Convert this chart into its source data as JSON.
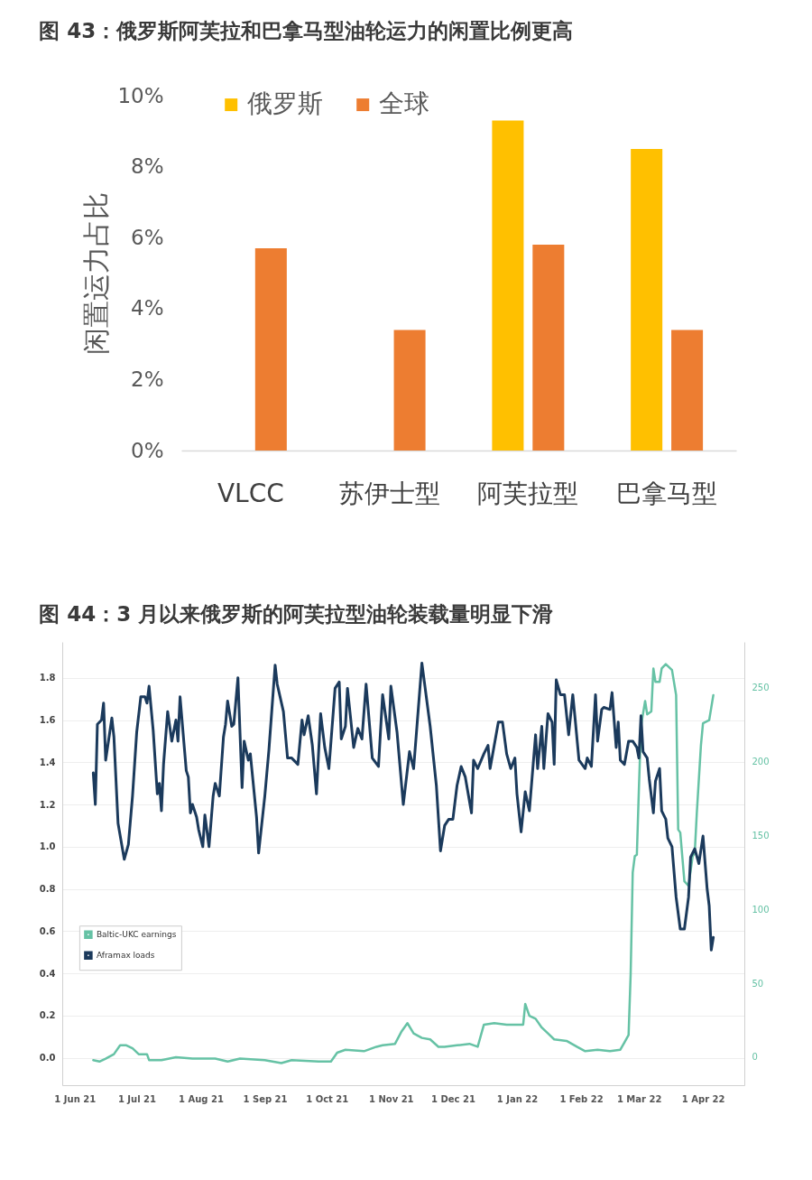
{
  "chart_data": [
    {
      "type": "bar",
      "title": "图 43：俄罗斯阿芙拉和巴拿马型油轮运力的闲置比例更高",
      "ylabel": "闲置运力占比",
      "categories": [
        "VLCC",
        "苏伊士型",
        "阿芙拉型",
        "巴拿马型"
      ],
      "series": [
        {
          "name": "俄罗斯",
          "color": "#ffc000",
          "values": [
            null,
            null,
            9.3,
            8.5
          ]
        },
        {
          "name": "全球",
          "color": "#ed7d31",
          "values": [
            5.7,
            3.4,
            5.8,
            3.4
          ]
        }
      ],
      "ylim": [
        0,
        10
      ],
      "yticks": [
        {
          "value": 0,
          "label": "0%"
        },
        {
          "value": 2,
          "label": "2%"
        },
        {
          "value": 4,
          "label": "4%"
        },
        {
          "value": 6,
          "label": "6%"
        },
        {
          "value": 8,
          "label": "8%"
        },
        {
          "value": 10,
          "label": "10%"
        }
      ],
      "grid": false,
      "legend": "top left"
    },
    {
      "type": "line",
      "title": "图 44：3 月以来俄罗斯的阿芙拉型油轮装载量明显下滑",
      "series": [
        {
          "name": "Baltic-UKC earnings",
          "color": "#66c2a5",
          "axis": "y2",
          "x": [
            "2021-06-10",
            "2021-06-13",
            "2021-06-16",
            "2021-06-20",
            "2021-06-23",
            "2021-06-26",
            "2021-06-29",
            "2021-07-02",
            "2021-07-06",
            "2021-07-07",
            "2021-07-13",
            "2021-07-20",
            "2021-07-28",
            "2021-08-08",
            "2021-08-14",
            "2021-08-20",
            "2021-09-01",
            "2021-09-09",
            "2021-09-14",
            "2021-09-27",
            "2021-10-03",
            "2021-10-06",
            "2021-10-10",
            "2021-10-19",
            "2021-10-25",
            "2021-10-28",
            "2021-11-03",
            "2021-11-06",
            "2021-11-09",
            "2021-11-12",
            "2021-11-16",
            "2021-11-20",
            "2021-11-24",
            "2021-11-27",
            "2021-12-03",
            "2021-12-09",
            "2021-12-13",
            "2021-12-16",
            "2021-12-21",
            "2021-12-27",
            "2022-01-04",
            "2022-01-05",
            "2022-01-07",
            "2022-01-10",
            "2022-01-13",
            "2022-01-16",
            "2022-01-19",
            "2022-01-25",
            "2022-01-30",
            "2022-02-03",
            "2022-02-09",
            "2022-02-15",
            "2022-02-20",
            "2022-02-22",
            "2022-02-24",
            "2022-02-25",
            "2022-02-26",
            "2022-02-27",
            "2022-02-28",
            "2022-03-01",
            "2022-03-02",
            "2022-03-04",
            "2022-03-05",
            "2022-03-07",
            "2022-03-08",
            "2022-03-09",
            "2022-03-11",
            "2022-03-12",
            "2022-03-14",
            "2022-03-17",
            "2022-03-19",
            "2022-03-20",
            "2022-03-21",
            "2022-03-23",
            "2022-03-25",
            "2022-03-27",
            "2022-03-28",
            "2022-03-29",
            "2022-03-31",
            "2022-04-01",
            "2022-04-04",
            "2022-04-06"
          ],
          "values": [
            -2,
            -3,
            -1,
            2,
            8,
            8,
            6,
            2,
            2,
            -2,
            -2,
            0,
            -1,
            -1,
            -3,
            -1,
            -2,
            -4,
            -2,
            -3,
            -3,
            3,
            5,
            4,
            7,
            8,
            9,
            17,
            23,
            16,
            13,
            12,
            7,
            7,
            8,
            9,
            7,
            22,
            23,
            22,
            22,
            36,
            28,
            26,
            20,
            16,
            12,
            11,
            7,
            4,
            5,
            4,
            5,
            10,
            15,
            56,
            125,
            136,
            137,
            182,
            224,
            241,
            232,
            234,
            263,
            254,
            254,
            263,
            266,
            262,
            245,
            154,
            152,
            119,
            116,
            136,
            138,
            165,
            211,
            226,
            228,
            245
          ]
        },
        {
          "name": "Aframax loads",
          "color": "#1b3a5c",
          "x": [
            "2021-06-10",
            "2021-06-11",
            "2021-06-12",
            "2021-06-14",
            "2021-06-15",
            "2021-06-16",
            "2021-06-19",
            "2021-06-20",
            "2021-06-22",
            "2021-06-25",
            "2021-06-27",
            "2021-06-29",
            "2021-07-01",
            "2021-07-03",
            "2021-07-05",
            "2021-07-06",
            "2021-07-07",
            "2021-07-09",
            "2021-07-11",
            "2021-07-12",
            "2021-07-13",
            "2021-07-14",
            "2021-07-16",
            "2021-07-18",
            "2021-07-20",
            "2021-07-21",
            "2021-07-22",
            "2021-07-25",
            "2021-07-26",
            "2021-07-27",
            "2021-07-28",
            "2021-07-30",
            "2021-07-31",
            "2021-08-02",
            "2021-08-03",
            "2021-08-05",
            "2021-08-07",
            "2021-08-08",
            "2021-08-10",
            "2021-08-12",
            "2021-08-13",
            "2021-08-14",
            "2021-08-16",
            "2021-08-17",
            "2021-08-19",
            "2021-08-21",
            "2021-08-22",
            "2021-08-24",
            "2021-08-25",
            "2021-08-28",
            "2021-08-29",
            "2021-09-01",
            "2021-09-03",
            "2021-09-06",
            "2021-09-07",
            "2021-09-10",
            "2021-09-12",
            "2021-09-14",
            "2021-09-17",
            "2021-09-19",
            "2021-09-20",
            "2021-09-22",
            "2021-09-24",
            "2021-09-26",
            "2021-09-28",
            "2021-09-30",
            "2021-10-02",
            "2021-10-05",
            "2021-10-07",
            "2021-10-08",
            "2021-10-10",
            "2021-10-11",
            "2021-10-14",
            "2021-10-16",
            "2021-10-18",
            "2021-10-20",
            "2021-10-23",
            "2021-10-26",
            "2021-10-28",
            "2021-10-31",
            "2021-11-01",
            "2021-11-04",
            "2021-11-07",
            "2021-11-10",
            "2021-11-12",
            "2021-11-16",
            "2021-11-18",
            "2021-11-20",
            "2021-11-23",
            "2021-11-25",
            "2021-11-27",
            "2021-11-29",
            "2021-12-01",
            "2021-12-03",
            "2021-12-05",
            "2021-12-07",
            "2021-12-10",
            "2021-12-11",
            "2021-12-13",
            "2021-12-16",
            "2021-12-18",
            "2021-12-19",
            "2021-12-23",
            "2021-12-25",
            "2021-12-27",
            "2021-12-29",
            "2021-12-31",
            "2022-01-01",
            "2022-01-03",
            "2022-01-05",
            "2022-01-07",
            "2022-01-10",
            "2022-01-11",
            "2022-01-13",
            "2022-01-14",
            "2022-01-16",
            "2022-01-18",
            "2022-01-19",
            "2022-01-20",
            "2022-01-22",
            "2022-01-24",
            "2022-01-26",
            "2022-01-28",
            "2022-01-29",
            "2022-01-31",
            "2022-02-03",
            "2022-02-04",
            "2022-02-06",
            "2022-02-08",
            "2022-02-09",
            "2022-02-11",
            "2022-02-12",
            "2022-02-15",
            "2022-02-16",
            "2022-02-18",
            "2022-02-19",
            "2022-02-20",
            "2022-02-22",
            "2022-02-24",
            "2022-02-26",
            "2022-02-28",
            "2022-03-01",
            "2022-03-02",
            "2022-03-03",
            "2022-03-05",
            "2022-03-06",
            "2022-03-08",
            "2022-03-09",
            "2022-03-11",
            "2022-03-12",
            "2022-03-14",
            "2022-03-15",
            "2022-03-17",
            "2022-03-19",
            "2022-03-21",
            "2022-03-23",
            "2022-03-25",
            "2022-03-26",
            "2022-03-28",
            "2022-03-30",
            "2022-04-01",
            "2022-04-03",
            "2022-04-04",
            "2022-04-05",
            "2022-04-06"
          ],
          "values": [
            1.35,
            1.2,
            1.58,
            1.6,
            1.68,
            1.41,
            1.61,
            1.52,
            1.11,
            0.94,
            1.01,
            1.24,
            1.54,
            1.71,
            1.71,
            1.68,
            1.76,
            1.55,
            1.25,
            1.3,
            1.17,
            1.39,
            1.64,
            1.5,
            1.6,
            1.5,
            1.71,
            1.36,
            1.33,
            1.16,
            1.2,
            1.14,
            1.08,
            1.0,
            1.15,
            1.0,
            1.24,
            1.3,
            1.24,
            1.52,
            1.58,
            1.69,
            1.57,
            1.58,
            1.8,
            1.28,
            1.5,
            1.41,
            1.44,
            1.14,
            0.97,
            1.24,
            1.46,
            1.86,
            1.77,
            1.64,
            1.42,
            1.42,
            1.39,
            1.6,
            1.53,
            1.62,
            1.48,
            1.25,
            1.63,
            1.47,
            1.37,
            1.75,
            1.78,
            1.51,
            1.57,
            1.75,
            1.47,
            1.56,
            1.51,
            1.77,
            1.42,
            1.38,
            1.72,
            1.51,
            1.76,
            1.54,
            1.2,
            1.45,
            1.37,
            1.87,
            1.72,
            1.57,
            1.29,
            0.98,
            1.1,
            1.13,
            1.13,
            1.29,
            1.38,
            1.33,
            1.16,
            1.41,
            1.37,
            1.44,
            1.48,
            1.37,
            1.59,
            1.59,
            1.44,
            1.37,
            1.42,
            1.25,
            1.07,
            1.26,
            1.17,
            1.53,
            1.37,
            1.57,
            1.37,
            1.63,
            1.59,
            1.39,
            1.79,
            1.72,
            1.72,
            1.53,
            1.72,
            1.62,
            1.41,
            1.37,
            1.42,
            1.38,
            1.72,
            1.5,
            1.65,
            1.66,
            1.65,
            1.73,
            1.47,
            1.59,
            1.41,
            1.39,
            1.5,
            1.5,
            1.47,
            1.42,
            1.62,
            1.45,
            1.42,
            1.32,
            1.16,
            1.31,
            1.37,
            1.17,
            1.13,
            1.04,
            1.0,
            0.76,
            0.61,
            0.61,
            0.76,
            0.95,
            0.99,
            0.92,
            1.05,
            0.8,
            0.72,
            0.51,
            0.57
          ]
        }
      ],
      "xlim": [
        "2021-05-26",
        "2022-04-21"
      ],
      "xticks": [
        {
          "value": "2021-06-01",
          "label": "1 Jun 21"
        },
        {
          "value": "2021-07-01",
          "label": "1 Jul 21"
        },
        {
          "value": "2021-08-01",
          "label": "1 Aug 21"
        },
        {
          "value": "2021-09-01",
          "label": "1 Sep 21"
        },
        {
          "value": "2021-10-01",
          "label": "1 Oct 21"
        },
        {
          "value": "2021-11-01",
          "label": "1 Nov 21"
        },
        {
          "value": "2021-12-01",
          "label": "1 Dec 21"
        },
        {
          "value": "2022-01-01",
          "label": "1 Jan 22"
        },
        {
          "value": "2022-02-01",
          "label": "1 Feb 22"
        },
        {
          "value": "2022-03-01",
          "label": "1 Mar 22"
        },
        {
          "value": "2022-04-01",
          "label": "1 Apr 22"
        }
      ],
      "ylim": [
        -0.13,
        1.97
      ],
      "yticks": [
        {
          "value": 0,
          "label": "0.0"
        },
        0.2,
        0.4,
        0.6,
        0.8,
        {
          "value": 1,
          "label": "1.0"
        },
        1.2,
        1.4,
        1.6,
        1.8
      ],
      "y2lim": [
        -19,
        281
      ],
      "y2ticks": [
        0,
        50,
        100,
        150,
        200,
        250
      ],
      "grid": "y",
      "legend": "left"
    }
  ]
}
